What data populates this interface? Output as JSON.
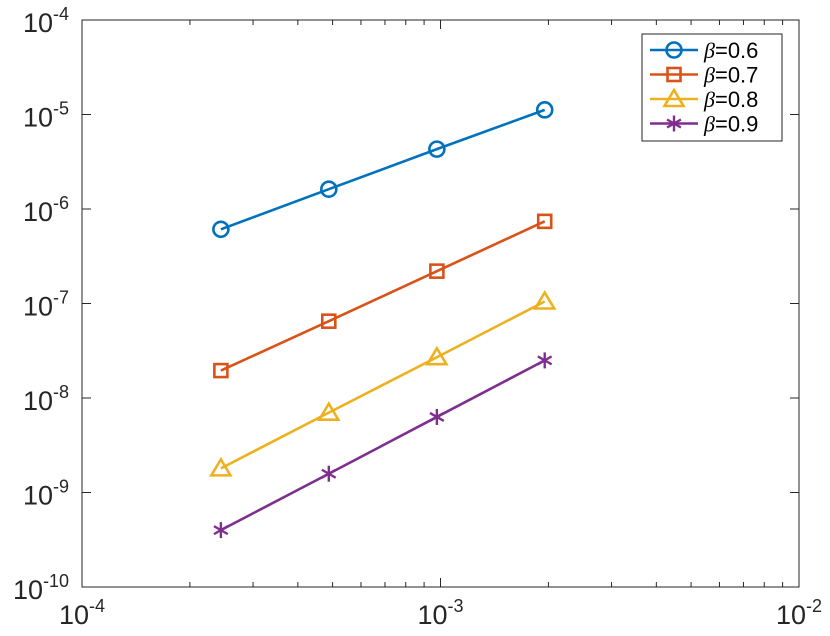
{
  "chart_data": {
    "type": "line",
    "title": "",
    "xlabel": "",
    "ylabel": "",
    "xscale": "log",
    "yscale": "log",
    "xlim": [
      0.0001,
      0.01
    ],
    "ylim": [
      1e-10,
      0.0001
    ],
    "grid": false,
    "legend_position": "top-right",
    "x_ticks": [
      {
        "value": 0.0001,
        "base": "10",
        "exp": "-4"
      },
      {
        "value": 0.001,
        "base": "10",
        "exp": "-3"
      },
      {
        "value": 0.01,
        "base": "10",
        "exp": "-2"
      }
    ],
    "y_ticks": [
      {
        "value": 1e-10,
        "base": "10",
        "exp": "-10"
      },
      {
        "value": 1e-09,
        "base": "10",
        "exp": "-9"
      },
      {
        "value": 1e-08,
        "base": "10",
        "exp": "-8"
      },
      {
        "value": 1e-07,
        "base": "10",
        "exp": "-7"
      },
      {
        "value": 1e-06,
        "base": "10",
        "exp": "-6"
      },
      {
        "value": 1e-05,
        "base": "10",
        "exp": "-5"
      },
      {
        "value": 0.0001,
        "base": "10",
        "exp": "-4"
      }
    ],
    "x": [
      0.000244,
      0.000488,
      0.000977,
      0.001953
    ],
    "series": [
      {
        "symbol": "β",
        "label": "=0.6",
        "color": "#0072BD",
        "marker": "circle",
        "values": [
          6.1e-07,
          1.62e-06,
          4.3e-06,
          1.12e-05
        ]
      },
      {
        "symbol": "β",
        "label": "=0.7",
        "color": "#D95319",
        "marker": "square",
        "values": [
          1.95e-08,
          6.5e-08,
          2.2e-07,
          7.4e-07
        ]
      },
      {
        "symbol": "β",
        "label": "=0.8",
        "color": "#EDB120",
        "marker": "triangle",
        "values": [
          1.8e-09,
          7e-09,
          2.7e-08,
          1.05e-07
        ]
      },
      {
        "symbol": "β",
        "label": "=0.9",
        "color": "#7E2F8E",
        "marker": "asterisk",
        "values": [
          4e-10,
          1.58e-09,
          6.3e-09,
          2.5e-08
        ]
      }
    ]
  }
}
